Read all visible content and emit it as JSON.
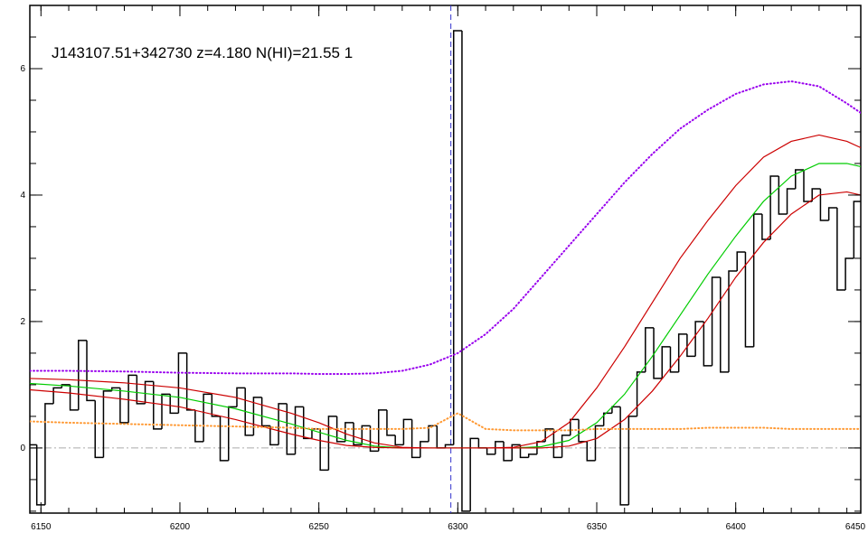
{
  "chart_data": {
    "type": "line",
    "title": "J143107.51+342730 z=4.180 N(HI)=21.55 1",
    "xlim": [
      6146,
      6445
    ],
    "ylim": [
      -1.03,
      7.0
    ],
    "xticks": [
      6150,
      6200,
      6250,
      6300,
      6350,
      6400,
      6450
    ],
    "yticks": [
      0,
      2,
      4,
      6
    ],
    "vline": {
      "value": 6297.5,
      "color": "#3333cc"
    },
    "hline": {
      "value": 0,
      "color": "#aaaaaa"
    },
    "series": [
      {
        "style": "step",
        "color": "#000000",
        "x": [
          6147,
          6150,
          6153,
          6156,
          6159,
          6162,
          6165,
          6168,
          6171,
          6174,
          6177,
          6180,
          6183,
          6186,
          6189,
          6192,
          6195,
          6198,
          6201,
          6204,
          6207,
          6210,
          6213,
          6216,
          6219,
          6222,
          6225,
          6228,
          6231,
          6234,
          6237,
          6240,
          6243,
          6246,
          6249,
          6252,
          6255,
          6258,
          6261,
          6264,
          6267,
          6270,
          6273,
          6276,
          6279,
          6282,
          6285,
          6288,
          6291,
          6294,
          6297,
          6300,
          6303,
          6306,
          6309,
          6312,
          6315,
          6318,
          6321,
          6324,
          6327,
          6330,
          6333,
          6336,
          6339,
          6342,
          6345,
          6348,
          6351,
          6354,
          6357,
          6360,
          6363,
          6366,
          6369,
          6372,
          6375,
          6378,
          6381,
          6384,
          6387,
          6390,
          6393,
          6396,
          6399,
          6402,
          6405,
          6408,
          6411,
          6414,
          6417,
          6420,
          6423,
          6426,
          6429,
          6432,
          6435,
          6438,
          6441,
          6444
        ],
        "values": [
          0.05,
          -0.9,
          0.7,
          0.95,
          1.0,
          0.6,
          1.7,
          0.75,
          -0.15,
          0.9,
          0.95,
          0.4,
          1.15,
          0.7,
          1.05,
          0.3,
          0.85,
          0.55,
          1.5,
          0.6,
          0.1,
          0.85,
          0.5,
          -0.2,
          0.65,
          0.95,
          0.2,
          0.8,
          0.35,
          0.05,
          0.7,
          -0.1,
          0.65,
          0.15,
          0.3,
          -0.35,
          0.5,
          0.1,
          0.4,
          0.05,
          0.35,
          -0.05,
          0.6,
          0.2,
          0.05,
          0.45,
          -0.15,
          0.1,
          0.35,
          0.0,
          0.05,
          6.6,
          -1.0,
          0.15,
          0.0,
          -0.1,
          0.1,
          -0.2,
          0.05,
          -0.15,
          -0.1,
          0.1,
          0.3,
          -0.15,
          0.2,
          0.45,
          0.1,
          -0.2,
          0.35,
          0.55,
          0.65,
          -0.9,
          0.5,
          1.2,
          1.9,
          1.1,
          1.6,
          1.2,
          1.8,
          1.45,
          2.0,
          1.3,
          2.7,
          1.2,
          2.8,
          3.1,
          1.6,
          3.7,
          3.3,
          4.3,
          3.7,
          4.1,
          4.4,
          3.9,
          4.1,
          3.6,
          3.8,
          2.5,
          3.0,
          3.9
        ]
      },
      {
        "style": "solid",
        "color": "#00cc00",
        "x": [
          6146,
          6160,
          6180,
          6200,
          6220,
          6240,
          6250,
          6260,
          6270,
          6280,
          6290,
          6300,
          6310,
          6320,
          6330,
          6340,
          6350,
          6360,
          6370,
          6380,
          6390,
          6400,
          6410,
          6420,
          6430,
          6440,
          6445
        ],
        "values": [
          1.02,
          0.98,
          0.9,
          0.8,
          0.62,
          0.38,
          0.25,
          0.12,
          0.03,
          0,
          0,
          0,
          0,
          0,
          0.02,
          0.12,
          0.4,
          0.85,
          1.45,
          2.1,
          2.75,
          3.35,
          3.9,
          4.3,
          4.5,
          4.5,
          4.45
        ]
      },
      {
        "style": "solid",
        "color": "#cc0000",
        "x": [
          6146,
          6160,
          6180,
          6200,
          6220,
          6240,
          6250,
          6260,
          6270,
          6280,
          6290,
          6300,
          6310,
          6320,
          6330,
          6340,
          6350,
          6360,
          6370,
          6380,
          6390,
          6400,
          6410,
          6420,
          6430,
          6440,
          6445
        ],
        "values": [
          1.1,
          1.08,
          1.03,
          0.95,
          0.8,
          0.55,
          0.4,
          0.22,
          0.08,
          0.01,
          0,
          0,
          0,
          0.01,
          0.1,
          0.4,
          0.95,
          1.6,
          2.3,
          3.0,
          3.6,
          4.15,
          4.6,
          4.85,
          4.95,
          4.85,
          4.75
        ]
      },
      {
        "style": "solid",
        "color": "#cc0000",
        "x": [
          6146,
          6160,
          6180,
          6200,
          6220,
          6240,
          6250,
          6260,
          6270,
          6280,
          6290,
          6300,
          6310,
          6320,
          6330,
          6340,
          6350,
          6360,
          6370,
          6380,
          6390,
          6400,
          6410,
          6420,
          6430,
          6440,
          6445
        ],
        "values": [
          0.92,
          0.87,
          0.77,
          0.65,
          0.45,
          0.22,
          0.12,
          0.04,
          0.01,
          0,
          0,
          0,
          0,
          0,
          0,
          0.03,
          0.15,
          0.45,
          0.9,
          1.45,
          2.05,
          2.7,
          3.25,
          3.7,
          4.0,
          4.05,
          4.0
        ]
      },
      {
        "style": "dotted",
        "color": "#9900ee",
        "x": [
          6146,
          6160,
          6180,
          6200,
          6220,
          6240,
          6250,
          6260,
          6270,
          6280,
          6290,
          6300,
          6310,
          6320,
          6330,
          6340,
          6350,
          6360,
          6370,
          6380,
          6390,
          6400,
          6410,
          6420,
          6430,
          6440,
          6445
        ],
        "values": [
          1.22,
          1.22,
          1.21,
          1.19,
          1.18,
          1.18,
          1.17,
          1.17,
          1.18,
          1.22,
          1.32,
          1.5,
          1.8,
          2.2,
          2.7,
          3.2,
          3.7,
          4.2,
          4.65,
          5.05,
          5.35,
          5.6,
          5.75,
          5.8,
          5.72,
          5.45,
          5.3
        ]
      },
      {
        "style": "dotted",
        "color": "#ff9933",
        "x": [
          6146,
          6160,
          6180,
          6200,
          6220,
          6240,
          6250,
          6260,
          6270,
          6280,
          6290,
          6300,
          6310,
          6320,
          6330,
          6340,
          6350,
          6360,
          6370,
          6380,
          6390,
          6400,
          6410,
          6420,
          6430,
          6440,
          6445
        ],
        "values": [
          0.42,
          0.4,
          0.38,
          0.36,
          0.34,
          0.32,
          0.3,
          0.3,
          0.3,
          0.3,
          0.32,
          0.55,
          0.3,
          0.28,
          0.28,
          0.28,
          0.3,
          0.3,
          0.3,
          0.3,
          0.32,
          0.32,
          0.32,
          0.3,
          0.3,
          0.3,
          0.3
        ]
      }
    ]
  }
}
